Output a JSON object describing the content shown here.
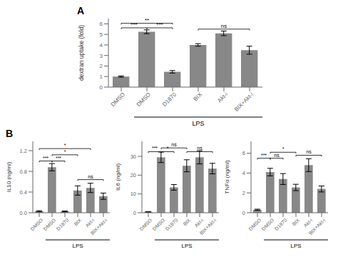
{
  "chart_data": [
    {
      "type": "bar",
      "title": "A",
      "categories": [
        "DMSO",
        "DMSO",
        "D1870",
        "BIX",
        "Akt-i",
        "BIX+Akt-i"
      ],
      "values": [
        1.0,
        5.25,
        1.45,
        4.0,
        5.1,
        3.5
      ],
      "errors": [
        0.06,
        0.18,
        0.12,
        0.12,
        0.22,
        0.38
      ],
      "ylabel": "dextran uptake (fold)",
      "ylim": [
        0,
        6.5
      ],
      "yticks": [
        0,
        1,
        2,
        3,
        4,
        5,
        6
      ],
      "color": "#888888",
      "sig_brackets": [
        {
          "x1": 0,
          "x2": 1,
          "y": 5.62,
          "label": "***"
        },
        {
          "x1": 1,
          "x2": 2,
          "y": 5.62,
          "label": "***"
        },
        {
          "x1": 0,
          "x2": 2,
          "y": 6.05,
          "label": "**"
        },
        {
          "x1": 3,
          "x2": 5,
          "y": 5.5,
          "label": "ns"
        }
      ],
      "group_labels": [
        {
          "label": "LPS",
          "from": 1,
          "to": 5
        }
      ]
    },
    {
      "type": "bar",
      "title": "B",
      "categories": [
        "DMSO",
        "DMSO",
        "D1870",
        "BIX",
        "Akt-i",
        "BIX+Akt-i"
      ],
      "values": [
        0.03,
        0.88,
        0.025,
        0.43,
        0.48,
        0.32
      ],
      "errors": [
        0.01,
        0.07,
        0.008,
        0.09,
        0.09,
        0.06
      ],
      "ylabel": "IL10 (ng/ml)",
      "ylim": [
        0,
        1.38
      ],
      "yticks": [
        {
          "value": 0,
          "label": "0.0"
        },
        0.4,
        0.8,
        1.2
      ],
      "color": "#888888",
      "sig_brackets": [
        {
          "x1": 0,
          "x2": 1,
          "y": 1.0,
          "label": "***"
        },
        {
          "x1": 1,
          "x2": 2,
          "y": 1.0,
          "label": "***"
        },
        {
          "x1": 1,
          "x2": 3,
          "y": 1.12,
          "label": "*"
        },
        {
          "x1": 0,
          "x2": 4,
          "y": 1.24,
          "label": "*"
        },
        {
          "x1": 3,
          "x2": 5,
          "y": 0.64,
          "label": "ns"
        }
      ],
      "group_labels": [
        {
          "label": "LPS",
          "from": 1,
          "to": 5
        }
      ]
    },
    {
      "type": "bar",
      "categories": [
        "DMSO",
        "DMSO",
        "D1870",
        "BIX",
        "Akt-i",
        "BIX+Akt-i"
      ],
      "values": [
        0.5,
        29.5,
        13.5,
        25.0,
        29.5,
        23.5
      ],
      "errors": [
        0.15,
        2.8,
        1.5,
        3.2,
        3.5,
        2.8
      ],
      "ylabel": "IL6 (ng/ml)",
      "ylim": [
        0,
        38
      ],
      "yticks": [
        0,
        10,
        20,
        30
      ],
      "color": "#888888",
      "sig_brackets": [
        {
          "x1": 0,
          "x2": 1,
          "y": 32.5,
          "label": "***"
        },
        {
          "x1": 1,
          "x2": 2,
          "y": 32.5,
          "label": "*"
        },
        {
          "x1": 1,
          "x2": 3,
          "y": 34.5,
          "label": "ns"
        },
        {
          "x1": 3,
          "x2": 5,
          "y": 32.5,
          "label": "ns"
        }
      ],
      "group_labels": [
        {
          "label": "LPS",
          "from": 1,
          "to": 5
        }
      ]
    },
    {
      "type": "bar",
      "categories": [
        "DMSO",
        "DMSO",
        "D1870",
        "BIX",
        "Akt-i",
        "BIX+Akt-i"
      ],
      "values": [
        0.3,
        4.1,
        3.4,
        2.55,
        4.8,
        2.4
      ],
      "errors": [
        0.06,
        0.38,
        0.55,
        0.32,
        0.65,
        0.3
      ],
      "ylabel": "TNFα (ng/ml)",
      "ylim": [
        0,
        7.2
      ],
      "yticks": [
        0,
        2,
        4,
        6
      ],
      "color": "#888888",
      "sig_brackets": [
        {
          "x1": 0,
          "x2": 1,
          "y": 5.5,
          "label": "***"
        },
        {
          "x1": 1,
          "x2": 2,
          "y": 5.5,
          "label": "ns"
        },
        {
          "x1": 1,
          "x2": 3,
          "y": 6.1,
          "label": "*"
        },
        {
          "x1": 3,
          "x2": 5,
          "y": 5.8,
          "label": "ns"
        }
      ],
      "group_labels": [
        {
          "label": "LPS",
          "from": 1,
          "to": 5
        }
      ]
    }
  ]
}
